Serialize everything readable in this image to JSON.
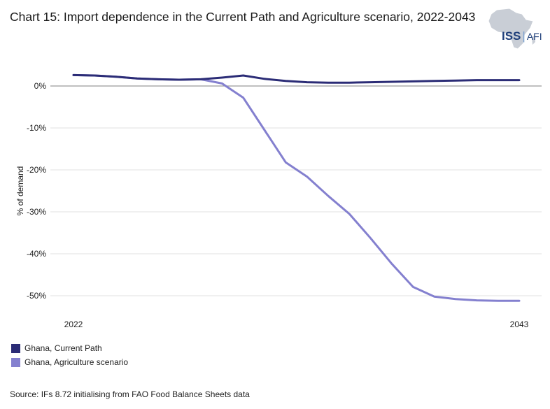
{
  "title": "Chart 15: Import dependence in the Current Path and Agriculture scenario, 2022-2043",
  "logo": {
    "iss": "ISS",
    "afi": "AFI",
    "icon": "africa-map-icon"
  },
  "source": "Source: IFs 8.72 initialising from FAO Food Balance Sheets data",
  "chart_data": {
    "type": "line",
    "title": "Chart 15: Import dependence in the Current Path and Agriculture scenario, 2022-2043",
    "xlabel": "",
    "ylabel": "% of demand",
    "x_tick_labels": [
      "2022",
      "2043"
    ],
    "y_ticks": [
      0,
      -10,
      -20,
      -30,
      -40,
      -50
    ],
    "y_tick_labels": [
      "0%",
      "-10%",
      "-20%",
      "-30%",
      "-40%",
      "-50%"
    ],
    "xlim": [
      2022,
      2043
    ],
    "ylim": [
      -53,
      4
    ],
    "grid": true,
    "legend_position": "bottom-left",
    "x": [
      2022,
      2023,
      2024,
      2025,
      2026,
      2027,
      2028,
      2029,
      2030,
      2031,
      2032,
      2033,
      2034,
      2035,
      2036,
      2037,
      2038,
      2039,
      2040,
      2041,
      2042,
      2043
    ],
    "series": [
      {
        "name": "Ghana, Current Path",
        "color": "#2b2c76",
        "values": [
          2.6,
          2.5,
          2.2,
          1.8,
          1.6,
          1.5,
          1.6,
          2.0,
          2.5,
          1.7,
          1.2,
          0.9,
          0.8,
          0.8,
          0.9,
          1.0,
          1.1,
          1.2,
          1.3,
          1.4,
          1.4,
          1.4
        ]
      },
      {
        "name": "Ghana, Agriculture scenario",
        "color": "#8480cf",
        "values": [
          2.6,
          2.5,
          2.2,
          1.8,
          1.6,
          1.5,
          1.6,
          0.6,
          -2.8,
          -10.5,
          -18.2,
          -21.6,
          -26.2,
          -30.5,
          -36.3,
          -42.4,
          -47.9,
          -50.2,
          -50.8,
          -51.1,
          -51.2,
          -51.2
        ]
      }
    ]
  }
}
